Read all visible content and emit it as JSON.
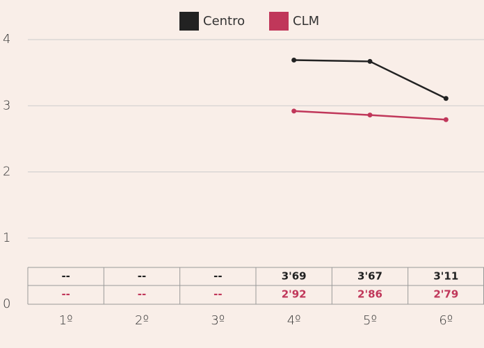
{
  "chart_data": {
    "type": "line",
    "categories": [
      "1º",
      "2º",
      "3º",
      "4º",
      "5º",
      "6º"
    ],
    "series": [
      {
        "name": "Centro",
        "color": "#222222",
        "values": [
          null,
          null,
          null,
          3.69,
          3.67,
          3.11
        ],
        "value_labels": [
          "--",
          "--",
          "--",
          "3'69",
          "3'67",
          "3'11"
        ]
      },
      {
        "name": "CLM",
        "color": "#c0375a",
        "values": [
          null,
          null,
          null,
          2.92,
          2.86,
          2.79
        ],
        "value_labels": [
          "--",
          "--",
          "--",
          "2'92",
          "2'86",
          "2'79"
        ]
      }
    ],
    "ylim": [
      0,
      4
    ],
    "yticks": [
      0,
      1,
      2,
      3,
      4
    ],
    "grid": true,
    "legend": "top"
  }
}
